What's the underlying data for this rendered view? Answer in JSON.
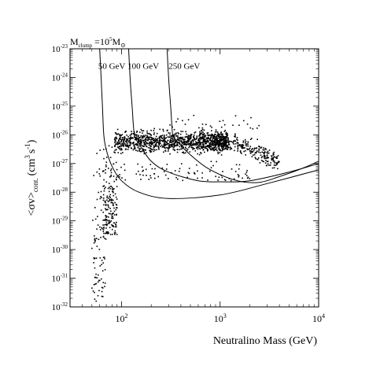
{
  "chart_data": {
    "type": "scatter",
    "title": "",
    "header_annotation": {
      "base": "M",
      "sub": "clump",
      "eq": " =10",
      "exp": "5",
      "unit": "M",
      "unit_sub": "⊙"
    },
    "xlabel": "Neutralino Mass (GeV)",
    "ylabel": {
      "main": "<σv>",
      "sub": "cont.",
      "unit_open": "(cm",
      "unit_exp1": "3",
      "unit_mid": "s",
      "unit_exp2": "-1",
      "unit_close": ")"
    },
    "x_scale": "log",
    "y_scale": "log",
    "xlim": [
      30,
      10000
    ],
    "ylim": [
      1e-32,
      1e-23
    ],
    "x_ticks": [
      {
        "value": 100,
        "base": "10",
        "exp": "2"
      },
      {
        "value": 1000,
        "base": "10",
        "exp": "3"
      },
      {
        "value": 10000,
        "base": "10",
        "exp": "4"
      }
    ],
    "y_ticks": [
      {
        "value": 1e-32,
        "base": "10",
        "exp": "-32"
      },
      {
        "value": 1e-31,
        "base": "10",
        "exp": "-31"
      },
      {
        "value": 1e-30,
        "base": "10",
        "exp": "-30"
      },
      {
        "value": 1e-29,
        "base": "10",
        "exp": "-29"
      },
      {
        "value": 1e-28,
        "base": "10",
        "exp": "-28"
      },
      {
        "value": 1e-27,
        "base": "10",
        "exp": "-27"
      },
      {
        "value": 1e-26,
        "base": "10",
        "exp": "-26"
      },
      {
        "value": 1e-25,
        "base": "10",
        "exp": "-25"
      },
      {
        "value": 1e-24,
        "base": "10",
        "exp": "-24"
      },
      {
        "value": 1e-23,
        "base": "10",
        "exp": "-23"
      }
    ],
    "grid": false,
    "legend": "none",
    "curves": [
      {
        "name": "50 GeV",
        "label_at": [
          58,
          2e-24
        ],
        "points": [
          [
            60,
            1e-23
          ],
          [
            62,
            1e-24
          ],
          [
            64,
            1e-25
          ],
          [
            66,
            1e-26
          ],
          [
            70,
            3e-27
          ],
          [
            80,
            8e-28
          ],
          [
            100,
            2.5e-28
          ],
          [
            150,
            1e-28
          ],
          [
            300,
            6e-29
          ],
          [
            1000,
            8e-29
          ],
          [
            3000,
            2e-28
          ],
          [
            10000,
            6e-28
          ]
        ]
      },
      {
        "name": "100 GeV",
        "label_at": [
          115,
          2e-24
        ],
        "points": [
          [
            118,
            1e-23
          ],
          [
            122,
            1e-24
          ],
          [
            128,
            1e-25
          ],
          [
            135,
            1e-26
          ],
          [
            150,
            5e-27
          ],
          [
            200,
            1.2e-27
          ],
          [
            300,
            5e-28
          ],
          [
            600,
            2.5e-28
          ],
          [
            1000,
            2.3e-28
          ],
          [
            2000,
            2.5e-28
          ],
          [
            5000,
            5e-28
          ],
          [
            10000,
            1e-27
          ]
        ]
      },
      {
        "name": "250 GeV",
        "label_at": [
          300,
          2e-24
        ],
        "points": [
          [
            290,
            1e-23
          ],
          [
            300,
            1e-24
          ],
          [
            315,
            1e-25
          ],
          [
            330,
            1e-26
          ],
          [
            350,
            7e-27
          ],
          [
            500,
            2e-27
          ],
          [
            800,
            6e-28
          ],
          [
            1500,
            2.5e-28
          ],
          [
            2500,
            2.2e-28
          ],
          [
            4000,
            3.5e-28
          ],
          [
            7000,
            7e-28
          ],
          [
            10000,
            1.2e-27
          ]
        ]
      }
    ],
    "scatter_note": "approximately 2000 model points; dense band near 1e-26 between ~80 GeV and ~4 TeV, plume descending to ~1e-32 near 50-90 GeV",
    "scatter_regions": [
      {
        "x_range": [
          85,
          1200
        ],
        "y_log_center": -26.25,
        "y_log_spread": 0.35,
        "count": 1050
      },
      {
        "x_range": [
          600,
          4000
        ],
        "y_log_center": -26.1,
        "y_log_spread": 0.3,
        "count": 380,
        "x_skew": "down-right"
      },
      {
        "x_range": [
          50,
          70
        ],
        "y_log_range": [
          -31.8,
          -26.0
        ],
        "count": 95
      },
      {
        "x_range": [
          65,
          90
        ],
        "y_log_range": [
          -29.5,
          -26.0
        ],
        "count": 170
      },
      {
        "x_range": [
          80,
          2000
        ],
        "y_log_range": [
          -27.6,
          -26.9
        ],
        "count": 90
      },
      {
        "x_range": [
          300,
          2500
        ],
        "y_log_range": [
          -25.8,
          -25.3
        ],
        "count": 25
      }
    ]
  }
}
